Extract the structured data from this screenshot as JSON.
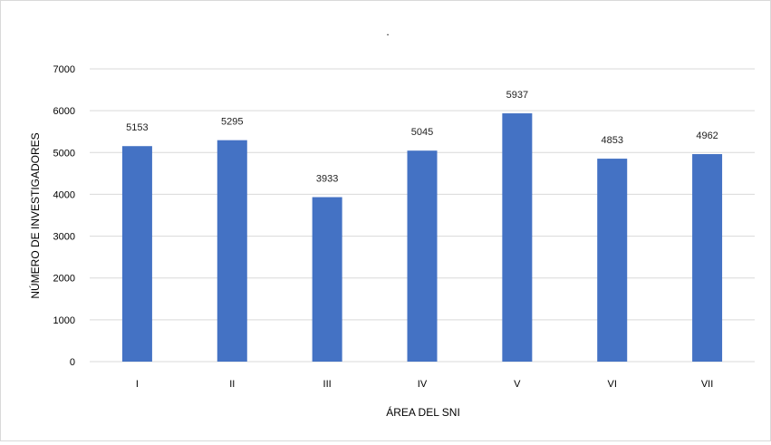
{
  "chart_data": {
    "type": "bar",
    "title": ".",
    "xlabel": "ÁREA DEL SNI",
    "ylabel": "NÚMERO DE INVESTIGADORES",
    "categories": [
      "I",
      "II",
      "III",
      "IV",
      "V",
      "VI",
      "VII"
    ],
    "values": [
      5153,
      5295,
      3933,
      5045,
      5937,
      4853,
      4962
    ],
    "data_labels": [
      "5153",
      "5295",
      "3933",
      "5045",
      "5937",
      "4853",
      "4962"
    ],
    "ylim": [
      0,
      7000
    ],
    "yticks": [
      0,
      1000,
      2000,
      3000,
      4000,
      5000,
      6000,
      7000
    ],
    "ytick_labels": [
      "0",
      "1000",
      "2000",
      "3000",
      "4000",
      "5000",
      "6000",
      "7000"
    ],
    "grid": true,
    "legend": "none",
    "bar_color": "#4472c4",
    "gridline_color": "#d9d9d9"
  }
}
